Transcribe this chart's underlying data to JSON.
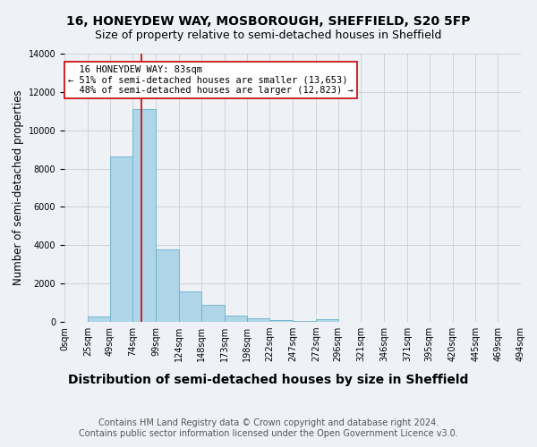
{
  "title": "16, HONEYDEW WAY, MOSBOROUGH, SHEFFIELD, S20 5FP",
  "subtitle": "Size of property relative to semi-detached houses in Sheffield",
  "xlabel": "Distribution of semi-detached houses by size in Sheffield",
  "ylabel": "Number of semi-detached properties",
  "footnote": "Contains HM Land Registry data © Crown copyright and database right 2024.\nContains public sector information licensed under the Open Government Licence v3.0.",
  "bin_edges": [
    0,
    25,
    49,
    74,
    99,
    124,
    148,
    173,
    198,
    222,
    247,
    272,
    296,
    321,
    346,
    371,
    395,
    420,
    445,
    469,
    494
  ],
  "bin_counts": [
    0,
    300,
    8650,
    11100,
    3800,
    1580,
    900,
    350,
    175,
    100,
    50,
    130,
    0,
    0,
    0,
    0,
    0,
    0,
    0,
    0
  ],
  "bar_color": "#aed6e8",
  "bar_edge_color": "#6ab0cc",
  "property_size": 83,
  "pct_smaller": 51,
  "pct_larger": 48,
  "n_smaller": 13653,
  "n_larger": 12823,
  "vline_color": "#cc0000",
  "annotation_box_color": "#ffffff",
  "ylim": [
    0,
    14000
  ],
  "yticks": [
    0,
    2000,
    4000,
    6000,
    8000,
    10000,
    12000,
    14000
  ],
  "grid_color": "#cccccc",
  "background_color": "#eef2f7",
  "title_fontsize": 10,
  "subtitle_fontsize": 9,
  "xlabel_fontsize": 10,
  "ylabel_fontsize": 8.5,
  "tick_fontsize": 7,
  "footnote_fontsize": 7,
  "annot_fontsize": 7.5
}
